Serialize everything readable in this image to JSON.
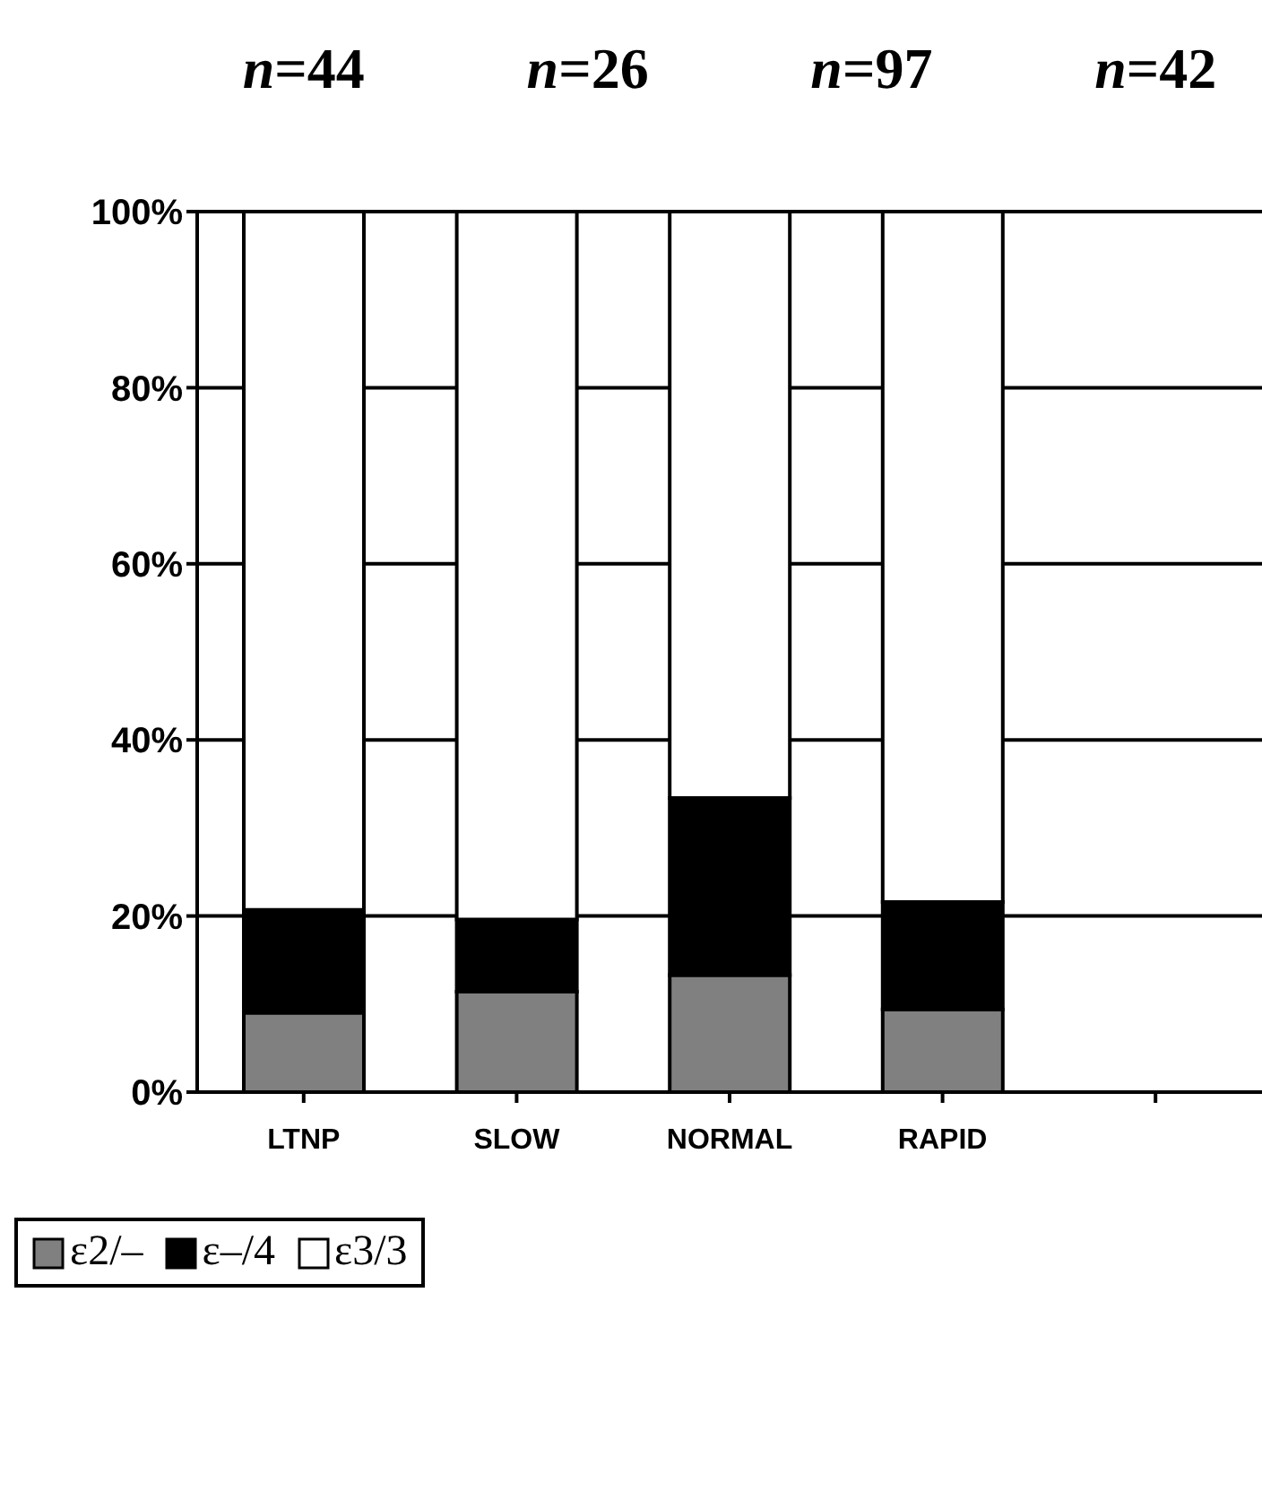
{
  "chart_data": {
    "type": "bar",
    "stacked": true,
    "categories": [
      "LTNP",
      "SLOW",
      "NORMAL",
      "RAPID",
      null
    ],
    "series": [
      {
        "name": "ε2/–",
        "color": "#808080",
        "values": [
          9,
          11.4,
          13.3,
          9.4,
          null
        ]
      },
      {
        "name": "ε–/4",
        "color": "#000000",
        "values": [
          11.7,
          8.2,
          20.1,
          12.2,
          null
        ]
      },
      {
        "name": "ε3/3",
        "color": "#ffffff",
        "values": [
          79.3,
          80.4,
          66.6,
          78.4,
          null
        ]
      }
    ],
    "ylim": [
      0,
      100
    ],
    "yticks": [
      {
        "value": 0,
        "label": "0%"
      },
      {
        "value": 20,
        "label": "20%"
      },
      {
        "value": 40,
        "label": "40%"
      },
      {
        "value": 60,
        "label": "60%"
      },
      {
        "value": 80,
        "label": "80%"
      },
      {
        "value": 100,
        "label": "100%"
      }
    ],
    "grid": "y",
    "legend": "bottom",
    "annotations": [
      "n=44",
      "n=26",
      "n=97",
      "n=42"
    ]
  }
}
